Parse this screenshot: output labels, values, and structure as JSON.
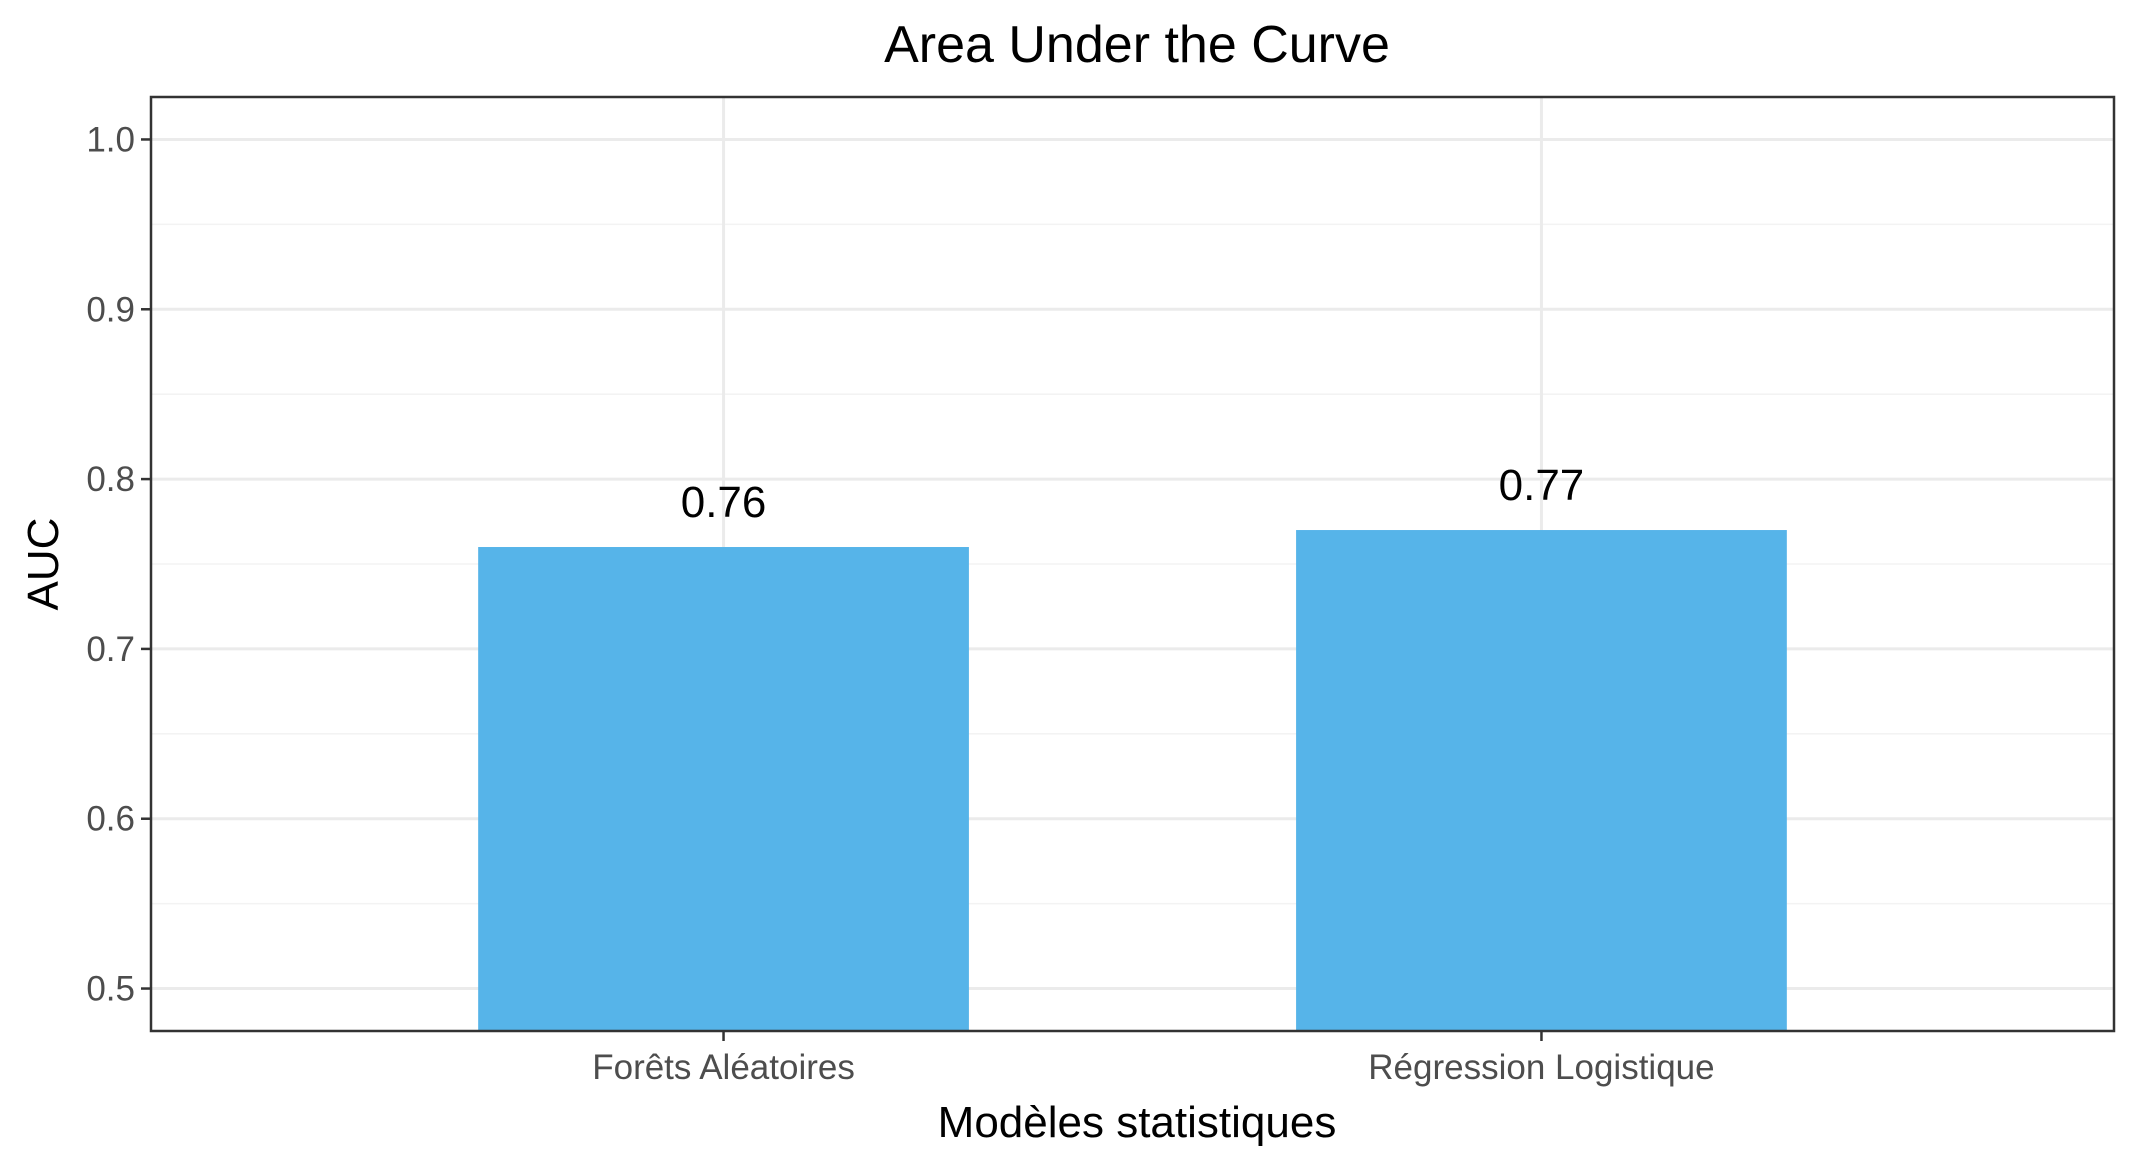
{
  "chart_data": {
    "type": "bar",
    "title": "Area Under the Curve",
    "xlabel": "Modèles statistiques",
    "ylabel": "AUC",
    "categories": [
      "Forêts Aléatoires",
      "Régression Logistique"
    ],
    "values": [
      0.76,
      0.77
    ],
    "data_labels": [
      "0.76",
      "0.77"
    ],
    "ylim": [
      0.475,
      1.025
    ],
    "y_ticks": [
      0.5,
      0.6,
      0.7,
      0.8,
      0.9,
      1.0
    ],
    "y_tick_labels": [
      "0.5",
      "0.6",
      "0.7",
      "0.8",
      "0.9",
      "1.0"
    ],
    "y_minor_ticks": [
      0.55,
      0.65,
      0.75,
      0.85,
      0.95
    ],
    "grid": true,
    "legend": "none",
    "bar_color": "#56B4E9"
  }
}
